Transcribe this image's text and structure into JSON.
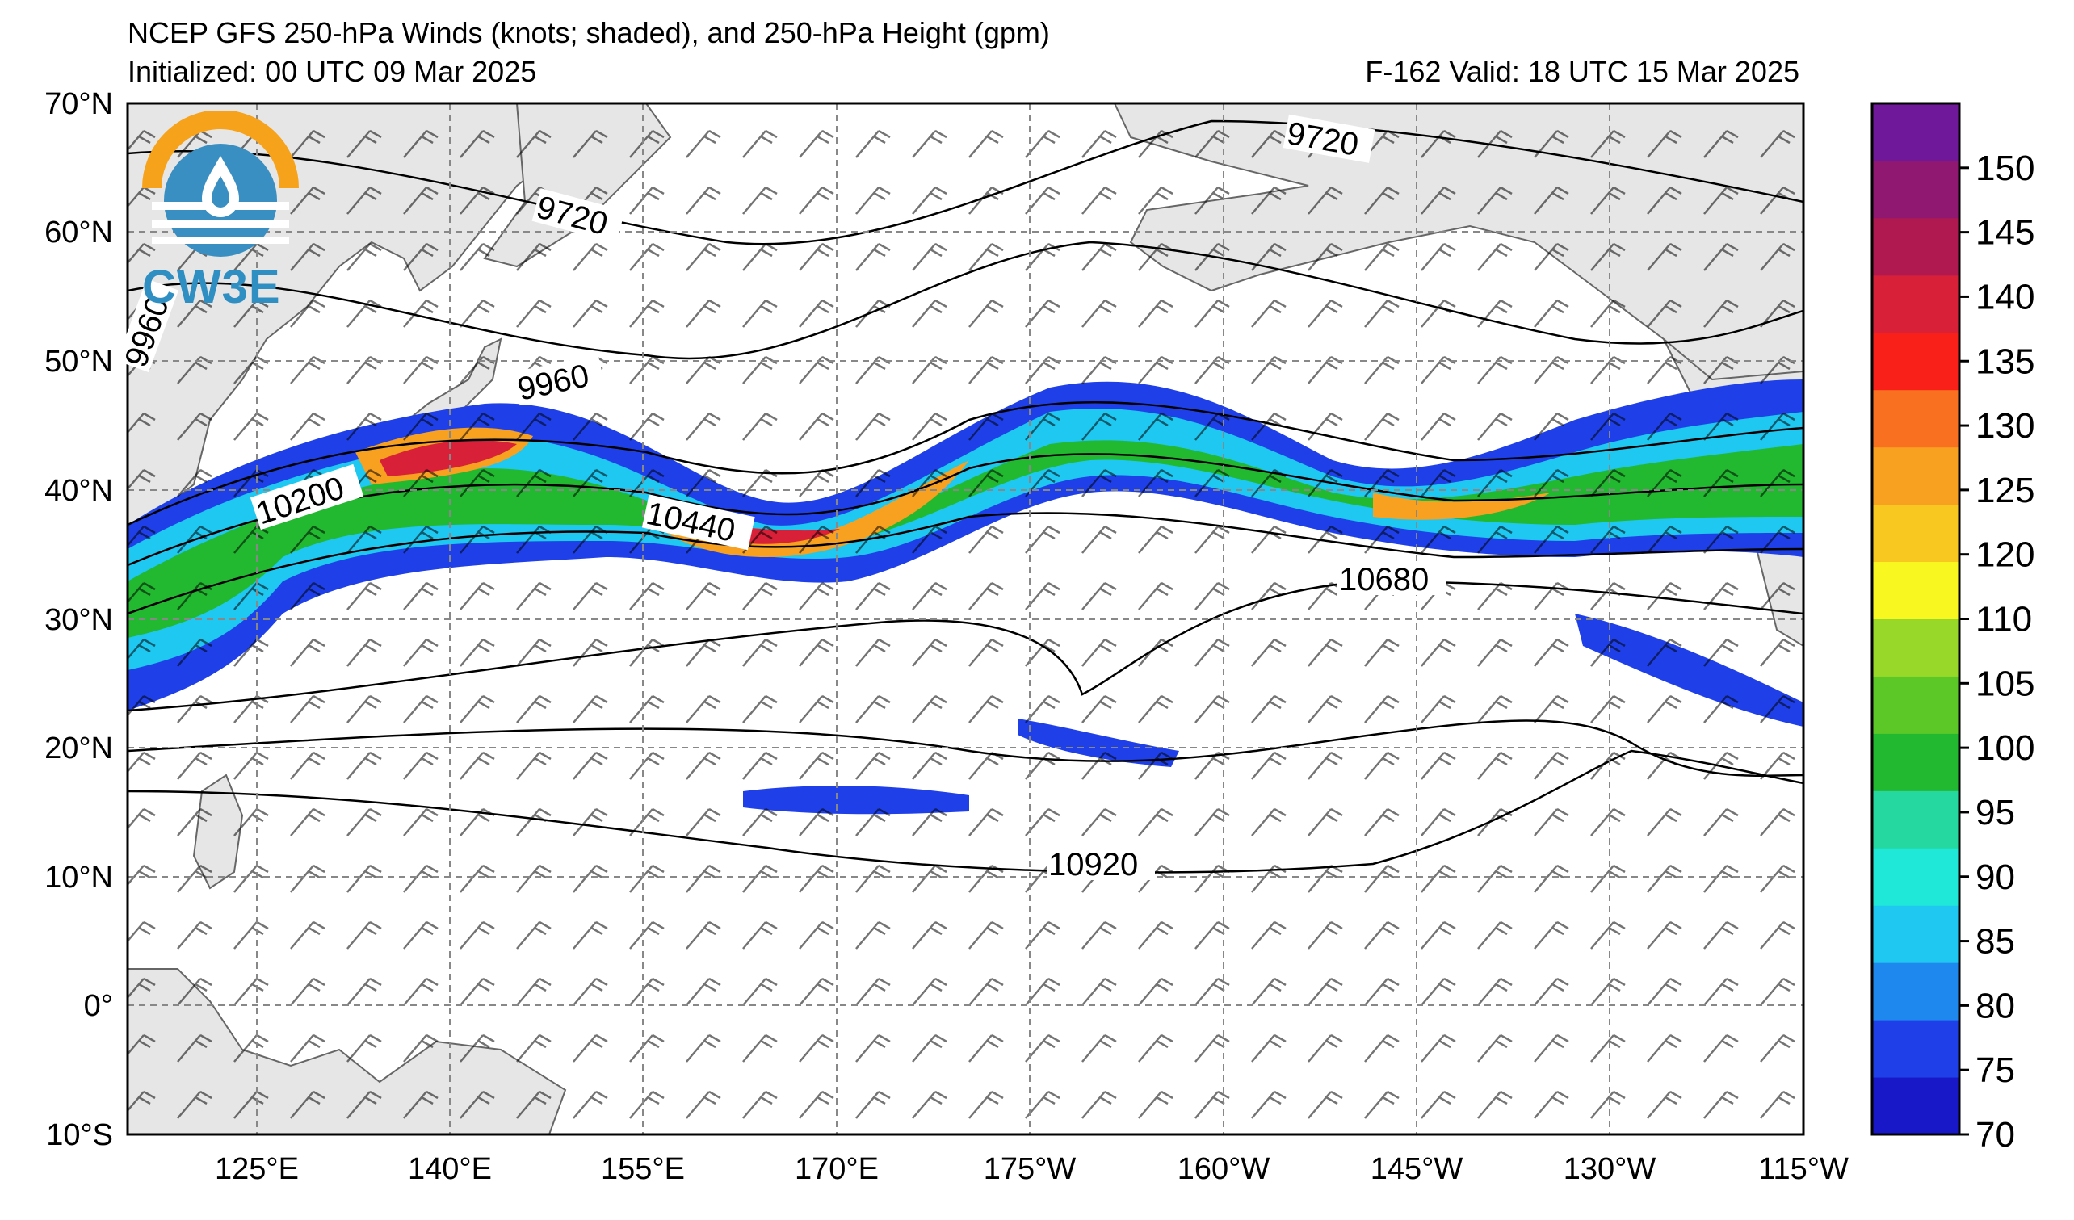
{
  "header": {
    "title": "NCEP GFS 250-hPa Winds (knots; shaded), and 250-hPa Height (gpm)",
    "initialized": "Initialized: 00 UTC 09 Mar 2025",
    "valid": "F-162  Valid: 18 UTC 15 Mar 2025"
  },
  "logo": {
    "text": "CW3E"
  },
  "axes": {
    "lat_labels": [
      "70°N",
      "60°N",
      "50°N",
      "40°N",
      "30°N",
      "20°N",
      "10°N",
      "0°",
      "10°S"
    ],
    "lon_labels": [
      "125°E",
      "140°E",
      "155°E",
      "170°E",
      "175°W",
      "160°W",
      "145°W",
      "130°W",
      "115°W"
    ]
  },
  "contour_labels": [
    "9720",
    "9720",
    "9960",
    "9960",
    "10200",
    "10440",
    "10680",
    "10920"
  ],
  "colorbar": {
    "ticks": [
      "70",
      "75",
      "80",
      "85",
      "90",
      "95",
      "100",
      "105",
      "110",
      "120",
      "125",
      "130",
      "135",
      "140",
      "145",
      "150"
    ],
    "colors": [
      "#1818c8",
      "#1f40e8",
      "#1e88ee",
      "#1ec8f0",
      "#20e8d8",
      "#24d8a0",
      "#22b830",
      "#5cc828",
      "#98d828",
      "#f8f820",
      "#f8c820",
      "#f8a020",
      "#f87020",
      "#f82018",
      "#d82038",
      "#b01850",
      "#901870",
      "#70189a"
    ]
  },
  "chart_data": {
    "type": "map",
    "lat_range": [
      -10,
      70
    ],
    "lon_range_east": [
      115,
      245
    ],
    "shading_threshold_kt": 70,
    "height_contours_gpm": [
      9720,
      9960,
      10200,
      10440,
      10680,
      10920
    ]
  }
}
